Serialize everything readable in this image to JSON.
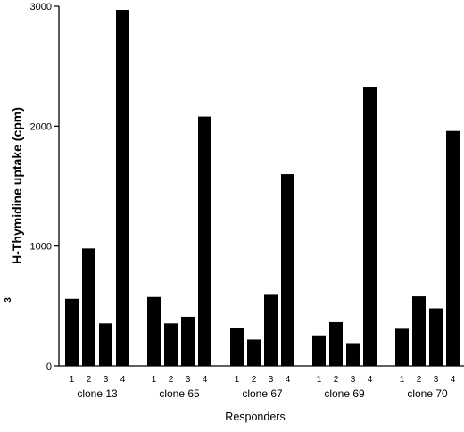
{
  "chart_data": {
    "type": "bar",
    "title": "",
    "ylabel_superscript": "3",
    "ylabel": "H-Thymidine uptake (cpm)",
    "xlabel": "Responders",
    "ylim": [
      0,
      3000
    ],
    "yticks": [
      "0",
      "1000",
      "2000",
      "3000"
    ],
    "grid": false,
    "legend": "none",
    "bar_color": "#000000",
    "groups": [
      {
        "name": "clone 13",
        "categories": [
          "1",
          "2",
          "3",
          "4"
        ],
        "values": [
          560,
          980,
          355,
          2970
        ]
      },
      {
        "name": "clone 65",
        "categories": [
          "1",
          "2",
          "3",
          "4"
        ],
        "values": [
          575,
          355,
          410,
          2080
        ]
      },
      {
        "name": "clone 67",
        "categories": [
          "1",
          "2",
          "3",
          "4"
        ],
        "values": [
          315,
          220,
          600,
          1600
        ]
      },
      {
        "name": "clone 69",
        "categories": [
          "1",
          "2",
          "3",
          "4"
        ],
        "values": [
          255,
          365,
          190,
          2330
        ]
      },
      {
        "name": "clone 70",
        "categories": [
          "1",
          "2",
          "3",
          "4"
        ],
        "values": [
          310,
          580,
          480,
          1960
        ]
      }
    ]
  }
}
